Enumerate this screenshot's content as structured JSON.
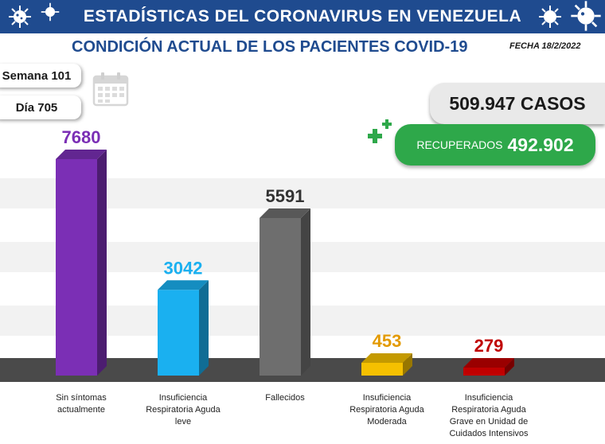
{
  "header": {
    "title": "ESTADÍSTICAS DEL CORONAVIRUS EN VENEZUELA",
    "subtitle": "CONDICIÓN ACTUAL DE LOS PACIENTES COVID-19",
    "date": "FECHA 18/2/2022"
  },
  "info": {
    "week": "Semana 101",
    "day": "Día 705"
  },
  "summary": {
    "cases": "509.947 CASOS",
    "recovered_label": "RECUPERADOS",
    "recovered_value": "492.902"
  },
  "colors": {
    "banner": "#1f4b8f",
    "recovered": "#2ea84a"
  },
  "icons": [
    "virus-icon",
    "calendar-icon",
    "plus-icon"
  ],
  "chart_data": {
    "type": "bar",
    "title": "CONDICIÓN ACTUAL DE LOS PACIENTES COVID-19",
    "categories": [
      [
        "Sin síntomas",
        "actualmente"
      ],
      [
        "Insuficiencia",
        "Respiratoria Aguda",
        "leve"
      ],
      [
        "Fallecidos"
      ],
      [
        "Insuficiencia",
        "Respiratoria Aguda",
        "Moderada"
      ],
      [
        "Insuficiencia",
        "Respiratoria Aguda",
        "Grave en Unidad de",
        "Cuidados Intensivos"
      ]
    ],
    "values": [
      7680,
      3042,
      5591,
      453,
      279
    ],
    "labels": [
      "7680",
      "3042",
      "5591",
      "453",
      "279"
    ],
    "colors": [
      "#7b2fb5",
      "#1ab0f0",
      "#6e6e6e",
      "#f5c000",
      "#c00000"
    ],
    "label_colors": [
      "#7b2fb5",
      "#1ab0f0",
      "#333333",
      "#e39a00",
      "#c00000"
    ],
    "ylim": [
      0,
      7680
    ],
    "grid": false
  }
}
